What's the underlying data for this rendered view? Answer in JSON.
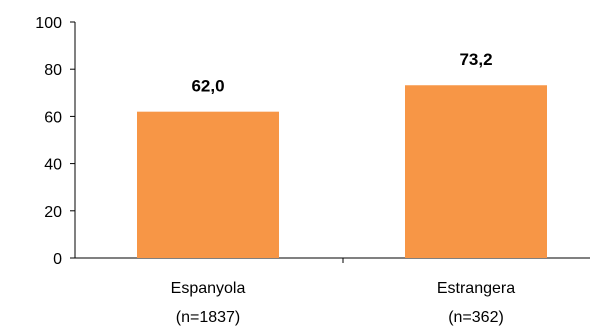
{
  "chart_data": {
    "type": "bar",
    "categories": [
      "Espanyola",
      "Estrangera"
    ],
    "category_sublabels": [
      "(n=1837)",
      "(n=362)"
    ],
    "values": [
      62.0,
      73.2
    ],
    "data_labels": [
      "62,0",
      "73,2"
    ],
    "title": "",
    "xlabel": "",
    "ylabel": "",
    "ylim": [
      0,
      100
    ],
    "yticks": [
      0,
      20,
      40,
      60,
      80,
      100
    ],
    "grid": false,
    "legend": "none",
    "colors": {
      "bar": "#F79646",
      "axis": "#000000"
    }
  }
}
